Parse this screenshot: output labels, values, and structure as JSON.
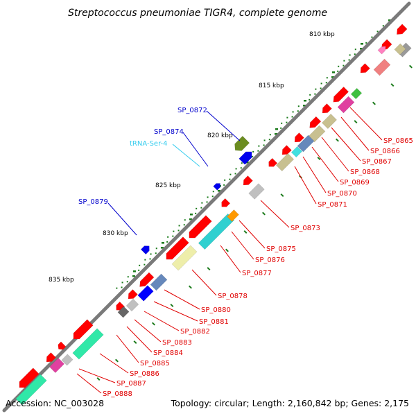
{
  "title": "Streptococcus pneumoniae TIGR4, complete genome",
  "footer": {
    "accession": "Accession: NC_003028",
    "summary": "Topology: circular; Length: 2,160,842 bp; Genes: 2,175"
  },
  "scale_labels": [
    "810 kbp",
    "815 kbp",
    "820 kbp",
    "825 kbp",
    "830 kbp",
    "835 kbp"
  ],
  "outer_labels": [
    "SP_0872",
    "SP_0874",
    "tRNA-Ser-4",
    "SP_0879"
  ],
  "inner_labels": [
    "SP_0865",
    "SP_0866",
    "SP_0867",
    "SP_0868",
    "SP_0869",
    "SP_0870",
    "SP_0871",
    "SP_0873",
    "SP_0875",
    "SP_0876",
    "SP_0877",
    "SP_0878",
    "SP_0880",
    "SP_0881",
    "SP_0882",
    "SP_0883",
    "SP_0884",
    "SP_0885",
    "SP_0886",
    "SP_0887",
    "SP_0888"
  ],
  "colors": {
    "cds": "#ff0000",
    "label_red": "#e00000",
    "label_blue": "#0000cc",
    "trna": "#33ccee",
    "backbone": "#7a7a7a",
    "tick": "#1a7a1a"
  }
}
